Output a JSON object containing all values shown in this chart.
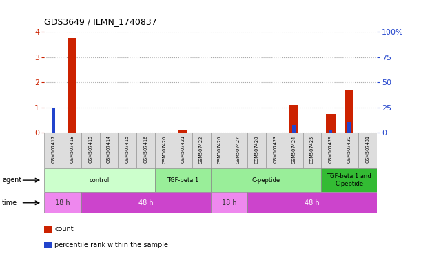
{
  "title": "GDS3649 / ILMN_1740837",
  "samples": [
    "GSM507417",
    "GSM507418",
    "GSM507419",
    "GSM507414",
    "GSM507415",
    "GSM507416",
    "GSM507420",
    "GSM507421",
    "GSM507422",
    "GSM507426",
    "GSM507427",
    "GSM507428",
    "GSM507423",
    "GSM507424",
    "GSM507425",
    "GSM507429",
    "GSM507430",
    "GSM507431"
  ],
  "count_values": [
    0.0,
    3.75,
    0.0,
    0.0,
    0.0,
    0.0,
    0.0,
    0.1,
    0.0,
    0.0,
    0.0,
    0.0,
    0.0,
    1.1,
    0.0,
    0.75,
    1.7,
    0.0
  ],
  "percentile_values": [
    25.0,
    0.0,
    0.0,
    0.0,
    0.0,
    0.0,
    0.0,
    0.0,
    0.0,
    0.0,
    0.0,
    0.0,
    0.0,
    7.5,
    0.0,
    2.5,
    10.0,
    0.0
  ],
  "ylim_left": [
    0,
    4
  ],
  "ylim_right": [
    0,
    100
  ],
  "yticks_left": [
    0,
    1,
    2,
    3,
    4
  ],
  "yticks_right": [
    0,
    25,
    50,
    75,
    100
  ],
  "ytick_labels_right": [
    "0",
    "25",
    "50",
    "75",
    "100%"
  ],
  "agent_groups": [
    {
      "label": "control",
      "start": 0,
      "end": 6,
      "color": "#ccffcc"
    },
    {
      "label": "TGF-beta 1",
      "start": 6,
      "end": 9,
      "color": "#99ee99"
    },
    {
      "label": "C-peptide",
      "start": 9,
      "end": 15,
      "color": "#99ee99"
    },
    {
      "label": "TGF-beta 1 and\nC-peptide",
      "start": 15,
      "end": 18,
      "color": "#33bb33"
    }
  ],
  "time_groups": [
    {
      "label": "18 h",
      "start": 0,
      "end": 2,
      "color": "#ee88ee",
      "text_color": "#333333"
    },
    {
      "label": "48 h",
      "start": 2,
      "end": 9,
      "color": "#cc44cc",
      "text_color": "#ffffff"
    },
    {
      "label": "18 h",
      "start": 9,
      "end": 11,
      "color": "#ee88ee",
      "text_color": "#333333"
    },
    {
      "label": "48 h",
      "start": 11,
      "end": 18,
      "color": "#cc44cc",
      "text_color": "#ffffff"
    }
  ],
  "bar_width": 0.5,
  "count_color": "#cc2200",
  "percentile_color": "#2244cc",
  "grid_color": "#aaaaaa",
  "bg_color": "#ffffff",
  "sample_box_color": "#dddddd",
  "sample_box_edge": "#999999",
  "ylabel_left_color": "#cc2200",
  "ylabel_right_color": "#2244cc"
}
